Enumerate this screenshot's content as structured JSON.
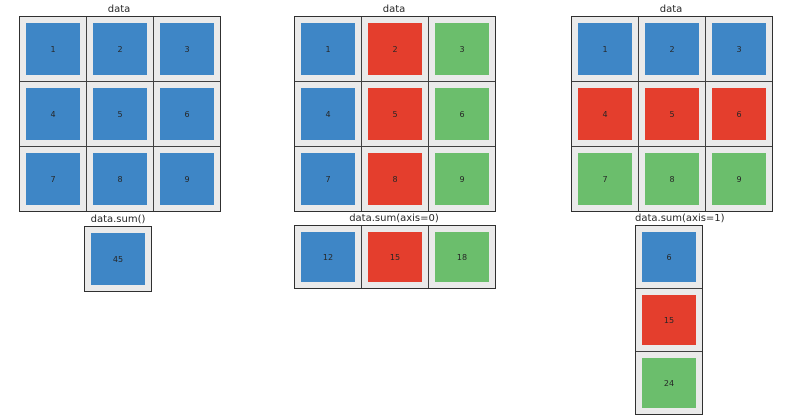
{
  "figure": {
    "background": "#ffffff",
    "palette": {
      "blue": "#3E86C6",
      "red": "#E43E2D",
      "green": "#6BBE6C",
      "cell_background": "#EAEAEA",
      "gridline": "#404040",
      "frame": "#303030",
      "text": "#262626"
    }
  },
  "panels": [
    {
      "title": "data",
      "rows": 3,
      "cols": 3,
      "cells": [
        {
          "value": "1",
          "color": "#3E86C6"
        },
        {
          "value": "2",
          "color": "#3E86C6"
        },
        {
          "value": "3",
          "color": "#3E86C6"
        },
        {
          "value": "4",
          "color": "#3E86C6"
        },
        {
          "value": "5",
          "color": "#3E86C6"
        },
        {
          "value": "6",
          "color": "#3E86C6"
        },
        {
          "value": "7",
          "color": "#3E86C6"
        },
        {
          "value": "8",
          "color": "#3E86C6"
        },
        {
          "value": "9",
          "color": "#3E86C6"
        }
      ]
    },
    {
      "title": "data.sum()",
      "rows": 1,
      "cols": 1,
      "cells": [
        {
          "value": "45",
          "color": "#3E86C6"
        }
      ]
    },
    {
      "title": "data",
      "rows": 3,
      "cols": 3,
      "cells": [
        {
          "value": "1",
          "color": "#3E86C6"
        },
        {
          "value": "2",
          "color": "#E43E2D"
        },
        {
          "value": "3",
          "color": "#6BBE6C"
        },
        {
          "value": "4",
          "color": "#3E86C6"
        },
        {
          "value": "5",
          "color": "#E43E2D"
        },
        {
          "value": "6",
          "color": "#6BBE6C"
        },
        {
          "value": "7",
          "color": "#3E86C6"
        },
        {
          "value": "8",
          "color": "#E43E2D"
        },
        {
          "value": "9",
          "color": "#6BBE6C"
        }
      ]
    },
    {
      "title": "data.sum(axis=0)",
      "rows": 1,
      "cols": 3,
      "cells": [
        {
          "value": "12",
          "color": "#3E86C6"
        },
        {
          "value": "15",
          "color": "#E43E2D"
        },
        {
          "value": "18",
          "color": "#6BBE6C"
        }
      ]
    },
    {
      "title": "data",
      "rows": 3,
      "cols": 3,
      "cells": [
        {
          "value": "1",
          "color": "#3E86C6"
        },
        {
          "value": "2",
          "color": "#3E86C6"
        },
        {
          "value": "3",
          "color": "#3E86C6"
        },
        {
          "value": "4",
          "color": "#E43E2D"
        },
        {
          "value": "5",
          "color": "#E43E2D"
        },
        {
          "value": "6",
          "color": "#E43E2D"
        },
        {
          "value": "7",
          "color": "#6BBE6C"
        },
        {
          "value": "8",
          "color": "#6BBE6C"
        },
        {
          "value": "9",
          "color": "#6BBE6C"
        }
      ]
    },
    {
      "title": "data.sum(axis=1)",
      "rows": 3,
      "cols": 1,
      "cells": [
        {
          "value": "6",
          "color": "#3E86C6"
        },
        {
          "value": "15",
          "color": "#E43E2D"
        },
        {
          "value": "24",
          "color": "#6BBE6C"
        }
      ]
    }
  ]
}
